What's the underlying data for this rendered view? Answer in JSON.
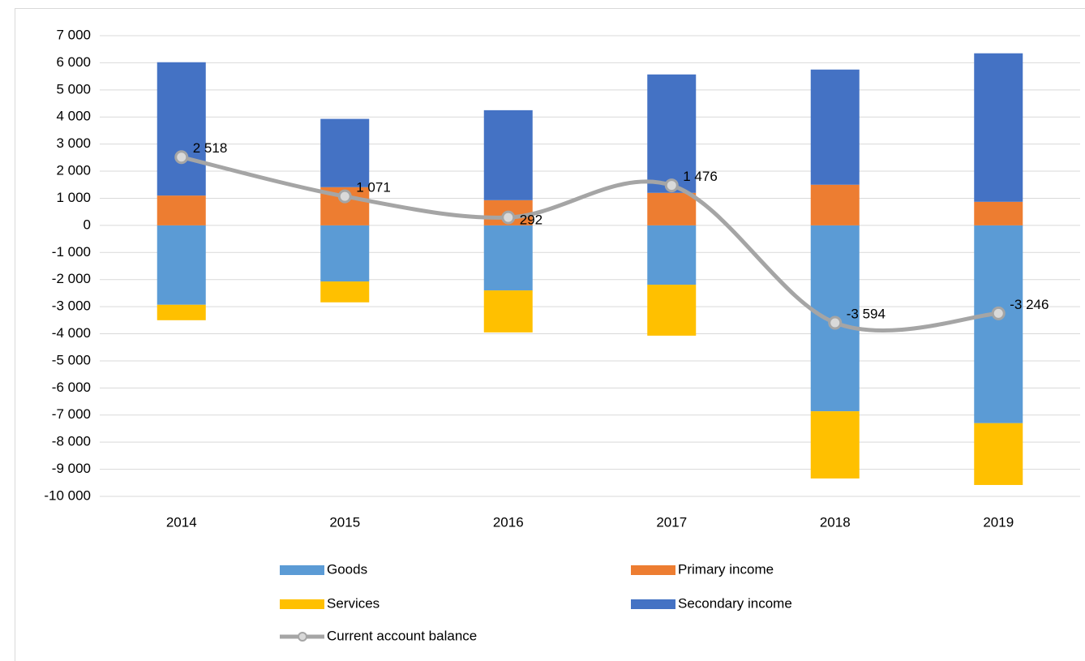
{
  "chart_data": {
    "type": "stacked-bar-line",
    "categories": [
      "2014",
      "2015",
      "2016",
      "2017",
      "2018",
      "2019"
    ],
    "series": [
      {
        "name": "Goods",
        "color": "#5b9bd5",
        "values": [
          -2930,
          -2070,
          -2400,
          -2190,
          -6860,
          -7300
        ]
      },
      {
        "name": "Primary income",
        "color": "#ed7d31",
        "values": [
          1100,
          1410,
          930,
          1200,
          1500,
          870
        ]
      },
      {
        "name": "Services",
        "color": "#ffc000",
        "values": [
          -570,
          -770,
          -1550,
          -1880,
          -2480,
          -2280
        ]
      },
      {
        "name": "Secondary income",
        "color": "#4472c4",
        "values": [
          4920,
          2520,
          3320,
          4370,
          4250,
          5480
        ]
      },
      {
        "name": "Current account balance",
        "color": "#a5a5a5",
        "type": "line",
        "values": [
          2518,
          1071,
          292,
          1476,
          -3594,
          -3246
        ],
        "value_labels": [
          "2 518",
          "1 071",
          "292",
          "1 476",
          "-3 594",
          "-3 246"
        ]
      }
    ],
    "ylim": [
      -10000,
      7000
    ],
    "yticks": [
      {
        "value": -10000,
        "label": "-10 000"
      },
      {
        "value": -9000,
        "label": "-9 000"
      },
      {
        "value": -8000,
        "label": "-8 000"
      },
      {
        "value": -7000,
        "label": "-7 000"
      },
      {
        "value": -6000,
        "label": "-6 000"
      },
      {
        "value": -5000,
        "label": "-5 000"
      },
      {
        "value": -4000,
        "label": "-4 000"
      },
      {
        "value": -3000,
        "label": "-3 000"
      },
      {
        "value": -2000,
        "label": "-2 000"
      },
      {
        "value": -1000,
        "label": "-1 000"
      },
      0,
      {
        "value": 1000,
        "label": "1 000"
      },
      {
        "value": 2000,
        "label": "2 000"
      },
      {
        "value": 3000,
        "label": "3 000"
      },
      {
        "value": 4000,
        "label": "4 000"
      },
      {
        "value": 5000,
        "label": "5 000"
      },
      {
        "value": 6000,
        "label": "6 000"
      },
      {
        "value": 7000,
        "label": "7 000"
      }
    ],
    "grid": true
  }
}
